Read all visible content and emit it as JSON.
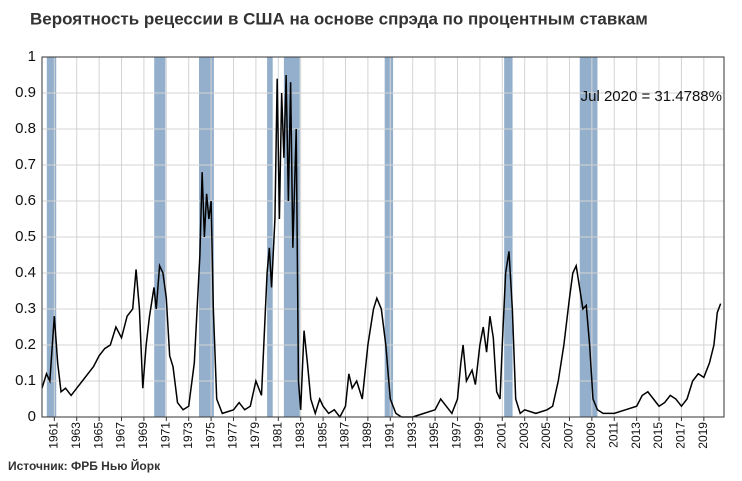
{
  "chart_data": {
    "type": "line",
    "title": "Вероятность рецессии в США на основе спрэда по процентным ставкам",
    "annotation": "Jul 2020 = 31.4788%",
    "source": "Источник: ФРБ Нью Йорк",
    "color": "#000000",
    "recession_color": "#94afcc",
    "recessions": [
      [
        1960.33,
        1961.17
      ],
      [
        1969.92,
        1970.92
      ],
      [
        1973.92,
        1975.25
      ],
      [
        1980.0,
        1980.5
      ],
      [
        1981.5,
        1982.92
      ],
      [
        1990.5,
        1991.25
      ],
      [
        2001.17,
        2001.92
      ],
      [
        2007.92,
        2009.5
      ]
    ],
    "x": [
      1959.9,
      1960.3,
      1960.6,
      1961.0,
      1961.3,
      1961.6,
      1962.0,
      1962.5,
      1963.0,
      1963.5,
      1964.0,
      1964.5,
      1965.0,
      1965.5,
      1966.0,
      1966.5,
      1967.0,
      1967.5,
      1968.0,
      1968.3,
      1968.6,
      1968.9,
      1969.2,
      1969.5,
      1969.9,
      1970.1,
      1970.4,
      1970.7,
      1971.0,
      1971.3,
      1971.6,
      1972.0,
      1972.5,
      1973.0,
      1973.5,
      1974.0,
      1974.2,
      1974.4,
      1974.6,
      1974.8,
      1975.0,
      1975.2,
      1975.5,
      1976.0,
      1977.0,
      1977.5,
      1978.0,
      1978.5,
      1979.0,
      1979.5,
      1980.0,
      1980.2,
      1980.4,
      1980.7,
      1980.9,
      1981.1,
      1981.3,
      1981.5,
      1981.7,
      1981.9,
      1982.1,
      1982.3,
      1982.6,
      1982.8,
      1983.0,
      1983.3,
      1983.6,
      1983.9,
      1984.3,
      1984.7,
      1985.0,
      1985.5,
      1986.0,
      1986.5,
      1987.0,
      1987.3,
      1987.6,
      1988.0,
      1988.5,
      1989.0,
      1989.5,
      1989.8,
      1990.2,
      1990.6,
      1991.0,
      1991.5,
      1992.0,
      1993.0,
      1994.0,
      1995.0,
      1995.5,
      1996.0,
      1996.5,
      1997.0,
      1997.3,
      1997.5,
      1997.8,
      1998.3,
      1998.6,
      1999.0,
      1999.3,
      1999.6,
      1999.9,
      2000.2,
      2000.5,
      2000.8,
      2001.0,
      2001.3,
      2001.6,
      2001.9,
      2002.2,
      2002.6,
      2003.0,
      2004.0,
      2005.0,
      2005.5,
      2006.0,
      2006.5,
      2007.0,
      2007.3,
      2007.6,
      2007.9,
      2008.2,
      2008.5,
      2008.8,
      2009.1,
      2009.5,
      2010.0,
      2011.0,
      2012.0,
      2013.0,
      2013.5,
      2014.0,
      2014.5,
      2015.0,
      2015.5,
      2016.0,
      2016.5,
      2017.0,
      2017.5,
      2018.0,
      2018.5,
      2019.0,
      2019.5,
      2019.9,
      2020.2,
      2020.5
    ],
    "values": [
      0.08,
      0.12,
      0.1,
      0.28,
      0.15,
      0.07,
      0.08,
      0.06,
      0.08,
      0.1,
      0.12,
      0.14,
      0.17,
      0.19,
      0.2,
      0.25,
      0.22,
      0.28,
      0.3,
      0.41,
      0.3,
      0.08,
      0.2,
      0.28,
      0.36,
      0.3,
      0.42,
      0.4,
      0.33,
      0.17,
      0.14,
      0.04,
      0.02,
      0.03,
      0.15,
      0.45,
      0.68,
      0.5,
      0.62,
      0.55,
      0.6,
      0.3,
      0.05,
      0.01,
      0.02,
      0.04,
      0.02,
      0.03,
      0.1,
      0.06,
      0.4,
      0.47,
      0.36,
      0.55,
      0.94,
      0.55,
      0.9,
      0.72,
      0.95,
      0.6,
      0.93,
      0.47,
      0.8,
      0.1,
      0.02,
      0.24,
      0.15,
      0.05,
      0.01,
      0.05,
      0.03,
      0.01,
      0.02,
      0.0,
      0.03,
      0.12,
      0.08,
      0.1,
      0.05,
      0.2,
      0.3,
      0.33,
      0.3,
      0.2,
      0.05,
      0.01,
      0.0,
      0.0,
      0.01,
      0.02,
      0.05,
      0.03,
      0.01,
      0.05,
      0.15,
      0.2,
      0.1,
      0.13,
      0.09,
      0.2,
      0.25,
      0.18,
      0.28,
      0.22,
      0.07,
      0.05,
      0.2,
      0.4,
      0.46,
      0.3,
      0.05,
      0.01,
      0.02,
      0.01,
      0.02,
      0.03,
      0.1,
      0.2,
      0.33,
      0.4,
      0.42,
      0.36,
      0.3,
      0.31,
      0.2,
      0.05,
      0.02,
      0.01,
      0.01,
      0.02,
      0.03,
      0.06,
      0.07,
      0.05,
      0.03,
      0.04,
      0.06,
      0.05,
      0.03,
      0.05,
      0.1,
      0.12,
      0.11,
      0.15,
      0.2,
      0.29,
      0.315
    ],
    "xlim": [
      1959.9,
      2020.8
    ],
    "xticks": [
      1961,
      1963,
      1965,
      1967,
      1969,
      1971,
      1973,
      1975,
      1977,
      1979,
      1981,
      1983,
      1985,
      1987,
      1989,
      1991,
      1993,
      1995,
      1997,
      1999,
      2001,
      2003,
      2005,
      2007,
      2009,
      2011,
      2013,
      2015,
      2017,
      2019
    ],
    "ylim": [
      0,
      1
    ],
    "yticks": [
      0,
      0.1,
      0.2,
      0.3,
      0.4,
      0.5,
      0.6,
      0.7,
      0.8,
      0.9,
      1
    ],
    "grid": true
  }
}
